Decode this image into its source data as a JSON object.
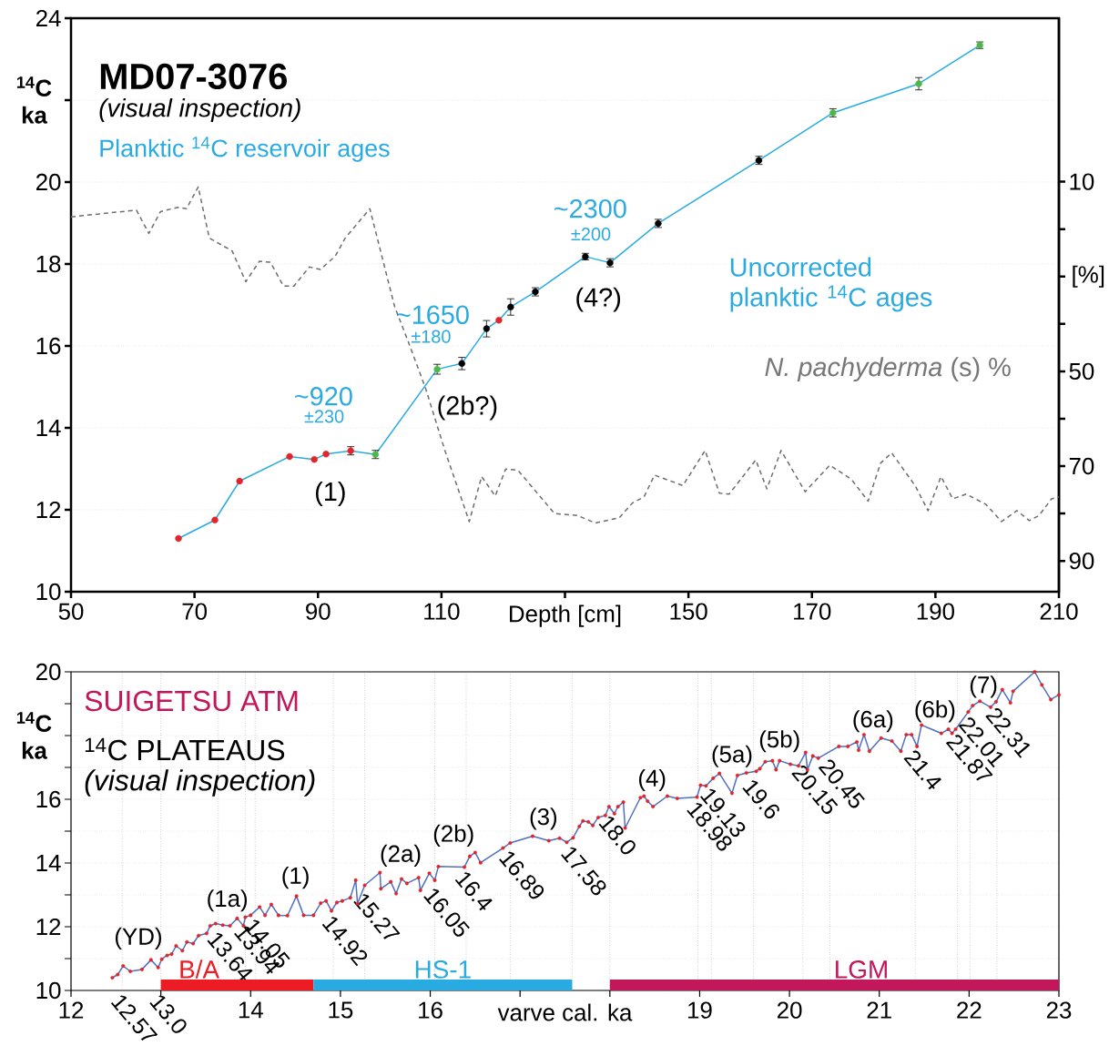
{
  "chart_data": [
    {
      "type": "line",
      "title": "MD07-3076",
      "subtitle": "(visual inspection)",
      "xlabel": "Depth [cm]",
      "ylabel": "$^{14}$C ka",
      "y2label": "[%]",
      "xlim": [
        50,
        210
      ],
      "xticks": [
        50,
        70,
        90,
        110,
        {
          "value": 130,
          "label": null
        },
        150,
        170,
        190,
        210
      ],
      "ylim": [
        10,
        24
      ],
      "yticks": [
        10,
        12,
        14,
        16,
        18,
        20,
        {
          "value": 22,
          "label": null
        },
        24
      ],
      "y2lim": [
        96.5,
        -24.5
      ],
      "y2ticks": [
        10,
        {
          "value": 20,
          "label": null
        },
        {
          "value": 30,
          "label": null
        },
        {
          "value": 40,
          "label": null
        },
        50,
        {
          "value": 60,
          "label": null
        },
        70,
        {
          "value": 80,
          "label": null
        },
        90
      ],
      "grid": "y",
      "marker": "circle",
      "annotations": [
        "Planktic $^{14}$C reservoir ages",
        "~920",
        "±230",
        "~1650",
        "±180",
        "~2300",
        "±200",
        "(1)",
        "(2b?)",
        "(4?)",
        "Uncorrected planktic $^{14}$C ages",
        "*N. pachyderma* (s) %"
      ],
      "series": [
        {
          "color": "#29abe2",
          "x": [
            67.4,
            73.3,
            77.3,
            85.4,
            89.4,
            91.3,
            95.3,
            99.3,
            109.3,
            113.3,
            117.3,
            119.3,
            121.2,
            125.2,
            133.3,
            137.3,
            145.1,
            161.4,
            173.4,
            187.3,
            197.2
          ],
          "values": [
            11.3,
            11.75,
            12.7,
            13.3,
            13.23,
            13.36,
            13.44,
            13.35,
            15.43,
            15.57,
            16.42,
            16.63,
            16.95,
            17.32,
            18.18,
            18.03,
            18.99,
            20.53,
            21.69,
            22.4,
            23.34
          ],
          "colors": [
            "#e0252b",
            "#e0252b",
            "#e0252b",
            "#e0252b",
            "#e0252b",
            "#e0252b",
            "#e0252b",
            "#4cb848",
            "#4cb848",
            "#000000",
            "#000000",
            "#e0252b",
            "#000000",
            "#000000",
            "#000000",
            "#000000",
            "#000000",
            "#000000",
            "#4cb848",
            "#4cb848",
            "#4cb848"
          ],
          "errors": [
            null,
            null,
            null,
            null,
            null,
            null,
            0.1,
            0.1,
            0.12,
            0.15,
            0.2,
            null,
            0.2,
            0.1,
            0.08,
            0.1,
            0.1,
            0.1,
            0.1,
            0.15,
            0.08
          ]
        },
        {
          "type": "line",
          "axis": "y2",
          "color": "#6d6d6d",
          "line_style": "dashed",
          "marker": "none",
          "x": [
            50,
            60.6,
            62.6,
            64.5,
            67.3,
            68.7,
            70.6,
            72.4,
            76.1,
            78.3,
            80.5,
            82.3,
            84.4,
            86.1,
            88.6,
            90.4,
            92.8,
            94.4,
            98.4,
            102.4,
            104.6,
            107.4,
            110.6,
            114.5,
            116.5,
            118.7,
            120.4,
            122.4,
            128.3,
            132,
            134.9,
            138.8,
            140.9,
            142.8,
            144.5,
            149.1,
            152.7,
            155,
            156.6,
            160.9,
            162.7,
            165,
            168.9,
            172.9,
            176.4,
            179.1,
            181.1,
            182.9,
            186.7,
            188.8,
            190.9,
            192.8,
            195,
            198.2,
            200.7,
            203.2,
            205.2,
            206.8,
            208.8,
            210
          ],
          "values": [
            17.4,
            16,
            20.9,
            16.3,
            15.4,
            15.7,
            11.1,
            21.9,
            24.6,
            31.1,
            26.8,
            27,
            32,
            32,
            28,
            28.5,
            25.7,
            21.9,
            15.7,
            36.3,
            43.7,
            53.5,
            66.9,
            81.7,
            72.2,
            76.3,
            70.6,
            70.9,
            80,
            80.4,
            82,
            80.9,
            77.8,
            76.5,
            71.9,
            74.1,
            66.7,
            75.7,
            75.9,
            68.7,
            74.8,
            66.7,
            75.4,
            69.8,
            72.8,
            77.4,
            69.4,
            67.2,
            74.1,
            79.4,
            72.2,
            76.9,
            75.9,
            78.1,
            81.7,
            79.4,
            81.5,
            80.4,
            76.9,
            76.5
          ]
        }
      ]
    },
    {
      "type": "line",
      "title": "SUIGETSU  ATM",
      "subtitle": "$^{14}$C PLATEAUS",
      "xlabel": "varve cal. ka",
      "ylabel": "$^{14}$C ka",
      "xlim": [
        12,
        23
      ],
      "xticks": [
        12,
        {
          "value": 13,
          "label": null
        },
        14,
        15,
        16,
        {
          "value": 17,
          "label": null
        },
        {
          "value": 18,
          "label": null
        },
        19,
        20,
        21,
        22,
        23
      ],
      "ylim": [
        10,
        20
      ],
      "yticks": [
        10,
        {
          "value": 11,
          "label": null
        },
        12,
        {
          "value": 13,
          "label": null
        },
        14,
        {
          "value": 15,
          "label": null
        },
        16,
        {
          "value": 17,
          "label": null
        },
        {
          "value": 18,
          "label": null
        },
        {
          "value": 19,
          "label": null
        },
        20
      ],
      "grid": "y",
      "marker": "circle",
      "annotations": [
        "(visual inspection)",
        "(YD)",
        "(1a)",
        "(1)",
        "(2a)",
        "(2b)",
        "(3)",
        "(4)",
        "(5a)",
        "(5b)",
        "(6a)",
        "(6b)",
        "(7)"
      ],
      "ref_lines": [
        {
          "axis": "x",
          "value": 12.57,
          "label": "12.57"
        },
        {
          "axis": "x",
          "value": 13.0,
          "label": "13.0"
        },
        {
          "axis": "x",
          "value": 13.64,
          "label": "13.64"
        },
        {
          "axis": "x",
          "value": 13.94,
          "label": "13.94"
        },
        {
          "axis": "x",
          "value": 14.05,
          "label": "14.05"
        },
        {
          "axis": "x",
          "value": 14.92,
          "label": "14.92"
        },
        {
          "axis": "x",
          "value": 15.27,
          "label": "15.27"
        },
        {
          "axis": "x",
          "value": 16.05,
          "label": "16.05"
        },
        {
          "axis": "x",
          "value": 16.4,
          "label": "16.4"
        },
        {
          "axis": "x",
          "value": 16.89,
          "label": "16.89"
        },
        {
          "axis": "x",
          "value": 17.58,
          "label": "17.58"
        },
        {
          "axis": "x",
          "value": 18.0,
          "label": "18.0"
        },
        {
          "axis": "x",
          "value": 18.98,
          "label": "18.98"
        },
        {
          "axis": "x",
          "value": 19.13,
          "label": "19.13"
        },
        {
          "axis": "x",
          "value": 19.6,
          "label": "19.6"
        },
        {
          "axis": "x",
          "value": 20.15,
          "label": "20.15"
        },
        {
          "axis": "x",
          "value": 20.45,
          "label": "20.45"
        },
        {
          "axis": "x",
          "value": 21.4,
          "label": "21.4"
        },
        {
          "axis": "x",
          "value": 21.87,
          "label": "21.87"
        },
        {
          "axis": "x",
          "value": 22.01,
          "label": "22.01"
        },
        {
          "axis": "x",
          "value": 22.31,
          "label": "22.31"
        }
      ],
      "series": [
        {
          "color": "#4f6fc0",
          "x": [
            12.46,
            12.52,
            12.58,
            12.66,
            12.79,
            12.89,
            12.97,
            13.01,
            13.07,
            13.12,
            13.17,
            13.24,
            13.29,
            13.36,
            13.42,
            13.51,
            13.55,
            13.61,
            13.69,
            13.77,
            13.85,
            13.92,
            13.94,
            14.0,
            14.1,
            14.16,
            14.23,
            14.31,
            14.41,
            14.51,
            14.59,
            14.7,
            14.78,
            14.84,
            14.9,
            14.96,
            15.02,
            15.11,
            15.17,
            15.19,
            15.27,
            15.44,
            15.45,
            15.56,
            15.62,
            15.68,
            15.74,
            15.87,
            15.89,
            15.99,
            16.05,
            16.09,
            16.38,
            16.44,
            16.5,
            16.56,
            16.81,
            16.89,
            17.14,
            17.32,
            17.44,
            17.52,
            17.59,
            17.66,
            17.7,
            17.76,
            17.81,
            17.87,
            17.95,
            17.99,
            18.05,
            18.09,
            18.15,
            18.17,
            18.34,
            18.38,
            18.42,
            18.48,
            18.64,
            18.75,
            18.97,
            19.01,
            19.07,
            19.15,
            19.22,
            19.36,
            19.42,
            19.52,
            19.63,
            19.67,
            19.73,
            19.81,
            19.85,
            19.89,
            20.01,
            20.1,
            20.18,
            20.2,
            20.26,
            20.32,
            20.55,
            20.65,
            20.75,
            20.77,
            20.83,
            20.89,
            21.02,
            21.14,
            21.24,
            21.3,
            21.36,
            21.42,
            21.47,
            21.69,
            21.77,
            21.81,
            21.85,
            21.99,
            22.04,
            22.12,
            22.24,
            22.3,
            22.37,
            22.46,
            22.49,
            22.73,
            22.81,
            22.91,
            23.0
          ],
          "values": [
            10.4,
            10.5,
            10.77,
            10.6,
            10.66,
            10.96,
            10.72,
            10.98,
            11.1,
            11.14,
            11.4,
            11.25,
            11.52,
            11.47,
            11.72,
            11.79,
            12.03,
            12.1,
            12.05,
            12.03,
            12.26,
            12.03,
            12.3,
            12.36,
            12.62,
            12.36,
            12.7,
            12.36,
            12.35,
            12.96,
            12.36,
            12.36,
            12.74,
            12.81,
            12.5,
            12.76,
            12.81,
            12.91,
            13.46,
            12.72,
            13.3,
            13.7,
            13.19,
            13.41,
            13.04,
            13.5,
            13.36,
            13.54,
            13.14,
            13.68,
            13.46,
            13.89,
            13.87,
            14.21,
            14.33,
            14.01,
            14.47,
            14.63,
            14.84,
            14.7,
            14.78,
            14.65,
            14.79,
            15.15,
            15.32,
            15.29,
            15.18,
            15.43,
            15.49,
            15.77,
            15.55,
            15.77,
            15.91,
            15.1,
            16.05,
            16.1,
            15.94,
            15.77,
            16.1,
            16.03,
            16.07,
            16.44,
            16.42,
            16.66,
            16.81,
            16.19,
            16.75,
            16.83,
            16.88,
            16.96,
            17.18,
            17.21,
            16.93,
            17.21,
            17.1,
            17.05,
            17.47,
            16.93,
            17.36,
            17.29,
            17.66,
            17.66,
            17.8,
            17.54,
            18.03,
            17.51,
            17.92,
            17.83,
            17.51,
            18.03,
            18.03,
            17.66,
            18.33,
            18.07,
            18.2,
            18.07,
            18.2,
            18.74,
            18.94,
            19.08,
            18.89,
            19.06,
            19.44,
            19.03,
            19.39,
            20.0,
            19.59,
            19.13,
            19.28
          ],
          "colors": [
            "#e0252b",
            "#e0252b",
            "#e0252b",
            "#e0252b",
            "#e0252b",
            "#e0252b",
            "#e0252b",
            "#e0252b",
            "#e0252b",
            "#e0252b",
            "#e0252b",
            "#e0252b",
            "#e0252b",
            "#e0252b",
            "#e0252b",
            "#e0252b",
            "#e0252b",
            "#e0252b",
            "#e0252b",
            "#e0252b",
            "#e0252b",
            "#e0252b",
            "#e0252b",
            "#e0252b",
            "#e0252b",
            "#e0252b",
            "#e0252b",
            "#e0252b",
            "#e0252b",
            "#e0252b",
            "#e0252b",
            "#e0252b",
            "#e0252b",
            "#e0252b",
            "#e0252b",
            "#e0252b",
            "#e0252b",
            "#e0252b",
            "#e0252b",
            "#e0252b",
            "#e0252b",
            "#e0252b",
            "#e0252b",
            "#e0252b",
            "#e0252b",
            "#e0252b",
            "#e0252b",
            "#e0252b",
            "#e0252b",
            "#e0252b",
            "#e0252b",
            "#e0252b",
            "#e0252b",
            "#e0252b",
            "#e0252b",
            "#e0252b",
            "#e0252b",
            "#e0252b",
            "#e0252b",
            "#e0252b",
            "#e0252b",
            "#e0252b",
            "#e0252b",
            "#e0252b",
            "#e0252b",
            "#e0252b",
            "#e0252b",
            "#e0252b",
            "#e0252b",
            "#e0252b",
            "#e0252b",
            "#e0252b",
            "#e0252b",
            "#e0252b",
            "#e0252b",
            "#e0252b",
            "#e0252b",
            "#e0252b",
            "#e0252b",
            "#e0252b",
            "#e0252b",
            "#e0252b",
            "#e0252b",
            "#e0252b",
            "#e0252b",
            "#e0252b",
            "#e0252b",
            "#e0252b",
            "#e0252b",
            "#e0252b",
            "#e0252b",
            "#e0252b",
            "#e0252b",
            "#e0252b",
            "#e0252b",
            "#e0252b",
            "#e0252b",
            "#e0252b",
            "#e0252b",
            "#e0252b",
            "#e0252b",
            "#e0252b",
            "#e0252b",
            "#e0252b",
            "#e0252b",
            "#e0252b",
            "#e0252b",
            "#e0252b",
            "#e0252b",
            "#e0252b",
            "#e0252b",
            "#e0252b",
            "#e0252b",
            "#e0252b",
            "#e0252b",
            "#e0252b",
            "#e0252b",
            "#e0252b",
            "#e0252b",
            "#e0252b",
            "#e0252b",
            "#e0252b",
            "#e0252b",
            "#e0252b",
            "#e0252b",
            "#e0252b",
            "#e0252b",
            "#e0252b",
            "#e0252b"
          ]
        }
      ]
    },
    {
      "type": "bar",
      "orientation": "horizontal",
      "categories": [
        null
      ],
      "xlim": [
        12,
        23
      ],
      "tick_labels": false,
      "series": [
        {
          "name": "B/A",
          "color": "#ed1c24",
          "values": [
            1.7
          ],
          "base": [
            13.0
          ]
        },
        {
          "name": "HS-1",
          "color": "#29abe2",
          "values": [
            2.88
          ],
          "base": [
            14.7
          ]
        },
        {
          "name": "LGM",
          "color": "#c2185b",
          "values": [
            5.0
          ],
          "base": [
            18.0
          ]
        }
      ]
    }
  ]
}
